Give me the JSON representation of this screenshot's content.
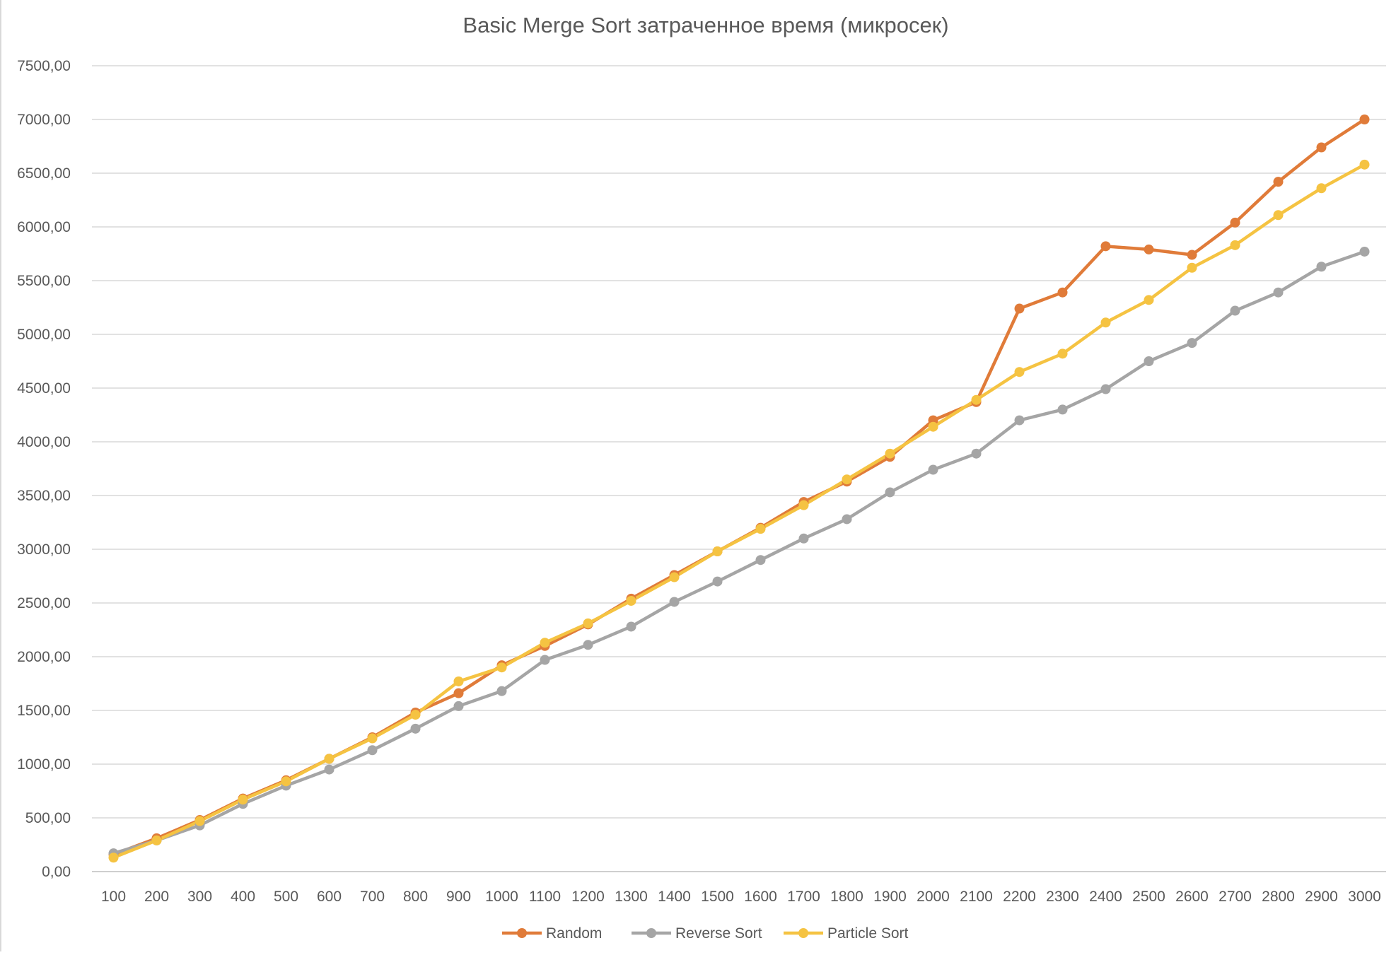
{
  "chart_data": {
    "type": "line",
    "title": "Basic Merge Sort затраченное время (микросек)",
    "xlabel": "",
    "ylabel": "",
    "ylim": [
      0,
      7500
    ],
    "yticks": [
      "0,00",
      "500,00",
      "1000,00",
      "1500,00",
      "2000,00",
      "2500,00",
      "3000,00",
      "3500,00",
      "4000,00",
      "4500,00",
      "5000,00",
      "5500,00",
      "6000,00",
      "6500,00",
      "7000,00",
      "7500,00"
    ],
    "categories": [
      "100",
      "200",
      "300",
      "400",
      "500",
      "600",
      "700",
      "800",
      "900",
      "1000",
      "1100",
      "1200",
      "1300",
      "1400",
      "1500",
      "1600",
      "1700",
      "1800",
      "1900",
      "2000",
      "2100",
      "2200",
      "2300",
      "2400",
      "2500",
      "2600",
      "2700",
      "2800",
      "2900",
      "3000"
    ],
    "grid": true,
    "legend": "bottom",
    "series": [
      {
        "name": "Random",
        "color": "#e07b39",
        "values": [
          160,
          310,
          480,
          680,
          850,
          1050,
          1250,
          1480,
          1660,
          1920,
          2100,
          2300,
          2540,
          2760,
          2980,
          3200,
          3440,
          3630,
          3860,
          4200,
          4370,
          5240,
          5390,
          5820,
          5790,
          5740,
          6040,
          6420,
          6740,
          7000
        ]
      },
      {
        "name": "Reverse Sort",
        "color": "#a5a5a5",
        "values": [
          170,
          290,
          430,
          630,
          800,
          950,
          1130,
          1330,
          1540,
          1680,
          1970,
          2110,
          2280,
          2510,
          2700,
          2900,
          3100,
          3280,
          3530,
          3740,
          3890,
          4200,
          4300,
          4490,
          4750,
          4920,
          5220,
          5390,
          5630,
          5770
        ]
      },
      {
        "name": "Particle Sort",
        "color": "#f5c342",
        "values": [
          130,
          290,
          470,
          670,
          840,
          1050,
          1240,
          1460,
          1770,
          1900,
          2130,
          2310,
          2520,
          2740,
          2980,
          3190,
          3410,
          3650,
          3890,
          4140,
          4390,
          4650,
          4820,
          5110,
          5320,
          5620,
          5830,
          6110,
          6360,
          6580
        ]
      }
    ]
  }
}
